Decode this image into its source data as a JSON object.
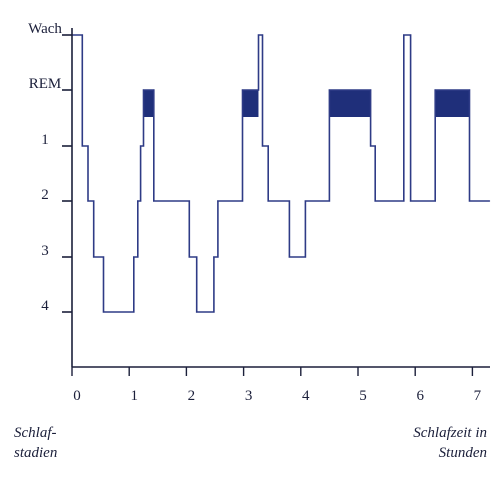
{
  "chart_data": {
    "type": "line",
    "title": "",
    "xlabel": "Schlafzeit in Stunden",
    "ylabel": "Schlafstadien",
    "xlim": [
      0,
      7.3
    ],
    "x_ticks": [
      "0",
      "1",
      "2",
      "3",
      "4",
      "5",
      "6",
      "7"
    ],
    "y_categories": [
      "Wach",
      "REM",
      "1",
      "2",
      "3",
      "4"
    ],
    "series": [
      {
        "points": [
          [
            0.0,
            "Wach"
          ],
          [
            0.18,
            "Wach"
          ],
          [
            0.18,
            "1"
          ],
          [
            0.28,
            "1"
          ],
          [
            0.28,
            "2"
          ],
          [
            0.38,
            "2"
          ],
          [
            0.38,
            "3"
          ],
          [
            0.55,
            "3"
          ],
          [
            0.55,
            "4"
          ],
          [
            1.08,
            "4"
          ],
          [
            1.08,
            "3"
          ],
          [
            1.15,
            "3"
          ],
          [
            1.15,
            "2"
          ],
          [
            1.2,
            "2"
          ],
          [
            1.2,
            "1"
          ],
          [
            1.25,
            "1"
          ],
          [
            1.25,
            "REM"
          ],
          [
            1.43,
            "REM"
          ],
          [
            1.43,
            "2"
          ],
          [
            2.05,
            "2"
          ],
          [
            2.05,
            "3"
          ],
          [
            2.18,
            "3"
          ],
          [
            2.18,
            "4"
          ],
          [
            2.48,
            "4"
          ],
          [
            2.48,
            "3"
          ],
          [
            2.55,
            "3"
          ],
          [
            2.55,
            "2"
          ],
          [
            2.98,
            "2"
          ],
          [
            2.98,
            "REM"
          ],
          [
            3.26,
            "REM"
          ],
          [
            3.26,
            "Wach"
          ],
          [
            3.33,
            "Wach"
          ],
          [
            3.33,
            "1"
          ],
          [
            3.43,
            "1"
          ],
          [
            3.43,
            "2"
          ],
          [
            3.8,
            "2"
          ],
          [
            3.8,
            "3"
          ],
          [
            4.08,
            "3"
          ],
          [
            4.08,
            "2"
          ],
          [
            4.5,
            "2"
          ],
          [
            4.5,
            "REM"
          ],
          [
            5.22,
            "REM"
          ],
          [
            5.22,
            "1"
          ],
          [
            5.3,
            "1"
          ],
          [
            5.3,
            "2"
          ],
          [
            5.8,
            "2"
          ],
          [
            5.8,
            "Wach"
          ],
          [
            5.92,
            "Wach"
          ],
          [
            5.92,
            "2"
          ],
          [
            6.35,
            "2"
          ],
          [
            6.35,
            "REM"
          ],
          [
            6.95,
            "REM"
          ],
          [
            6.95,
            "2"
          ],
          [
            7.3,
            "2"
          ]
        ]
      }
    ],
    "rem_blocks": [
      [
        1.25,
        1.43
      ],
      [
        2.98,
        3.26
      ],
      [
        4.5,
        5.22
      ],
      [
        6.35,
        6.95
      ]
    ],
    "colors": {
      "line": "#2e3b86",
      "rem_fill": "#1f2f7a",
      "axis": "#1b1f3a"
    }
  },
  "labels": {
    "y_caption_line1": "Schlaf-",
    "y_caption_line2": "stadien",
    "x_caption_line1": "Schlafzeit in",
    "x_caption_line2": "Stunden"
  }
}
